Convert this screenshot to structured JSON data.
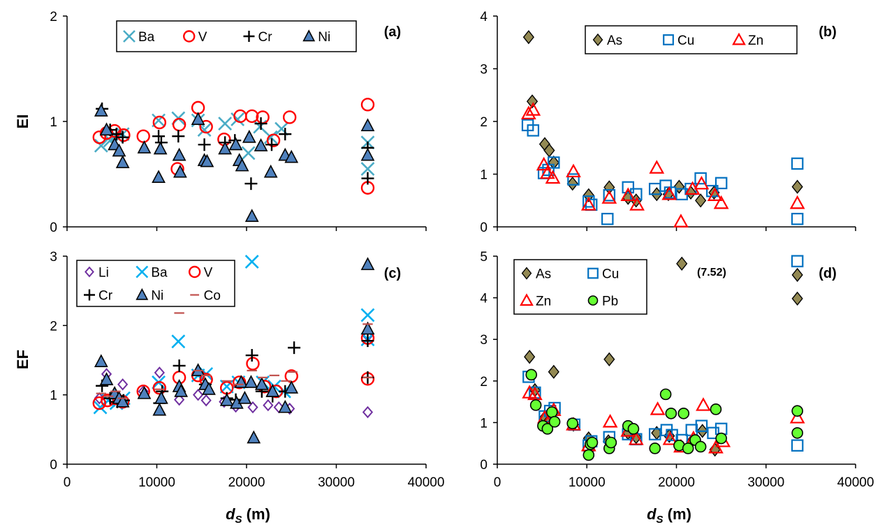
{
  "chart_data": [
    {
      "panel_label": "(a)",
      "type": "scatter",
      "ylabel": "EI",
      "xlabel": "",
      "xlim": [
        0,
        40000
      ],
      "ylim": [
        0,
        2
      ],
      "yticks": [
        "0",
        "1",
        "2"
      ],
      "xticks": [],
      "legend": {
        "position": "top",
        "columns": 4
      },
      "series": [
        {
          "name": "Ba",
          "marker": "x",
          "color": "#4bacc6",
          "x": [
            3800,
            4800,
            5500,
            6200,
            10200,
            12400,
            14600,
            15300,
            17600,
            19000,
            20200,
            21500,
            22700,
            23900,
            33500,
            33500
          ],
          "y": [
            0.77,
            0.82,
            0.86,
            0.88,
            1.01,
            1.03,
            1.01,
            0.92,
            0.98,
            1.02,
            0.7,
            0.95,
            0.85,
            0.93,
            0.8,
            0.55
          ]
        },
        {
          "name": "V",
          "marker": "circle",
          "color": "#ff0000",
          "x": [
            3600,
            4400,
            5300,
            6300,
            8500,
            10300,
            12500,
            12300,
            14600,
            15500,
            17500,
            19300,
            20600,
            21800,
            23000,
            24800,
            33500,
            33500
          ],
          "y": [
            0.85,
            0.89,
            0.91,
            0.87,
            0.86,
            0.99,
            0.97,
            0.55,
            1.13,
            0.95,
            0.83,
            1.05,
            1.05,
            1.04,
            0.82,
            1.04,
            1.16,
            0.37
          ]
        },
        {
          "name": "Cr",
          "marker": "plus",
          "color": "#000000",
          "x": [
            3900,
            4800,
            5500,
            6200,
            10200,
            10500,
            12400,
            15300,
            17600,
            18700,
            20500,
            21600,
            22800,
            24300,
            33500,
            33500
          ],
          "y": [
            1.12,
            0.92,
            0.88,
            0.85,
            0.86,
            0.8,
            0.86,
            0.78,
            0.8,
            0.82,
            0.41,
            0.98,
            0.78,
            0.88,
            0.75,
            0.46
          ]
        },
        {
          "name": "Ni",
          "marker": "triangle",
          "color": "#4f81bd",
          "x": [
            3800,
            4400,
            5300,
            5800,
            6200,
            8600,
            10200,
            10400,
            12500,
            12600,
            14600,
            15300,
            15600,
            17600,
            18800,
            19200,
            19500,
            20300,
            20600,
            21600,
            22700,
            24300,
            25000,
            33500,
            33500
          ],
          "y": [
            1.1,
            0.92,
            0.78,
            0.72,
            0.61,
            0.75,
            0.47,
            0.74,
            0.68,
            0.52,
            1.02,
            0.63,
            0.62,
            0.74,
            0.78,
            0.63,
            0.58,
            0.85,
            0.1,
            0.77,
            0.52,
            0.68,
            0.66,
            0.96,
            0.68
          ]
        }
      ]
    },
    {
      "panel_label": "(b)",
      "type": "scatter",
      "ylabel": "",
      "xlabel": "",
      "xlim": [
        0,
        40000
      ],
      "ylim": [
        0,
        4
      ],
      "yticks": [
        "0",
        "1",
        "2",
        "3",
        "4"
      ],
      "xticks": [],
      "legend": {
        "position": "top",
        "columns": 3
      },
      "series": [
        {
          "name": "As",
          "marker": "diamond",
          "color": "#938953",
          "x": [
            3500,
            3900,
            5300,
            5800,
            6300,
            8400,
            10200,
            12500,
            14600,
            15500,
            17800,
            19100,
            20300,
            21600,
            22700,
            24200,
            33500
          ],
          "y": [
            3.6,
            2.38,
            1.57,
            1.45,
            1.22,
            0.82,
            0.6,
            0.75,
            0.55,
            0.5,
            0.62,
            0.62,
            0.76,
            0.65,
            0.5,
            0.65,
            0.76
          ]
        },
        {
          "name": "Cu",
          "marker": "square",
          "color": "#0070c0",
          "x": [
            3400,
            4000,
            5200,
            5700,
            6300,
            8500,
            10200,
            10500,
            12300,
            12500,
            14600,
            15500,
            17600,
            18800,
            19300,
            20600,
            21600,
            22700,
            24000,
            25000,
            33500,
            33500
          ],
          "y": [
            1.93,
            1.83,
            1.02,
            1.08,
            1.22,
            0.9,
            0.48,
            0.42,
            0.15,
            0.6,
            0.75,
            0.62,
            0.72,
            0.78,
            0.65,
            0.62,
            0.72,
            0.92,
            0.68,
            0.83,
            1.2,
            0.15
          ]
        },
        {
          "name": "Zn",
          "marker": "triangle",
          "color": "#ff0000",
          "x": [
            3500,
            4000,
            5200,
            5600,
            6200,
            8500,
            10200,
            12500,
            14600,
            15600,
            17800,
            19200,
            20500,
            21800,
            22800,
            24300,
            25000,
            33500
          ],
          "y": [
            2.15,
            2.22,
            1.18,
            1.02,
            0.93,
            1.05,
            0.42,
            0.55,
            0.6,
            0.42,
            1.12,
            0.62,
            0.1,
            0.72,
            0.82,
            0.6,
            0.45,
            0.45
          ]
        }
      ]
    },
    {
      "panel_label": "(c)",
      "type": "scatter",
      "ylabel": "EF",
      "xlabel": "dS (m)",
      "xlim": [
        0,
        40000
      ],
      "ylim": [
        0,
        3
      ],
      "xticks": [
        "0",
        "10000",
        "20000",
        "30000",
        "40000"
      ],
      "yticks": [
        "0",
        "1",
        "2",
        "3"
      ],
      "legend": {
        "position": "top-left",
        "columns": 3
      },
      "series": [
        {
          "name": "Li",
          "marker": "diamond-open",
          "color": "#7030a0",
          "x": [
            3600,
            4400,
            5300,
            6200,
            8500,
            10300,
            12500,
            14600,
            15500,
            17500,
            18800,
            20700,
            22400,
            23600,
            24800,
            33500,
            33500
          ],
          "y": [
            0.95,
            1.3,
            0.98,
            1.15,
            1.05,
            1.32,
            0.93,
            1.0,
            0.92,
            0.9,
            0.83,
            0.82,
            0.85,
            0.82,
            0.8,
            1.85,
            0.75
          ]
        },
        {
          "name": "Ba",
          "marker": "x",
          "color": "#00b0f0",
          "x": [
            3700,
            4600,
            5500,
            6300,
            10200,
            12400,
            14600,
            15500,
            17800,
            19100,
            20600,
            21800,
            23100,
            24200,
            33500,
            33500
          ],
          "y": [
            0.82,
            0.92,
            0.88,
            0.95,
            1.18,
            1.77,
            1.28,
            1.3,
            1.12,
            1.18,
            2.92,
            1.18,
            1.12,
            1.05,
            2.15,
            1.8
          ]
        },
        {
          "name": "V",
          "marker": "circle",
          "color": "#ff0000",
          "x": [
            3600,
            4500,
            5400,
            6200,
            8500,
            10300,
            12500,
            14600,
            15500,
            17800,
            19200,
            20700,
            22000,
            23300,
            25000,
            33500,
            33500
          ],
          "y": [
            0.88,
            0.92,
            0.95,
            0.9,
            1.05,
            1.1,
            1.25,
            1.28,
            1.22,
            1.1,
            1.18,
            1.45,
            1.12,
            1.05,
            1.27,
            1.82,
            1.23
          ]
        },
        {
          "name": "Cr",
          "marker": "plus",
          "color": "#000000",
          "x": [
            3900,
            4800,
            5600,
            6300,
            10300,
            10600,
            12500,
            15400,
            17800,
            18800,
            20600,
            21700,
            22900,
            24300,
            25300,
            33500,
            33500
          ],
          "y": [
            1.13,
            0.95,
            0.9,
            0.92,
            0.88,
            1.05,
            1.42,
            1.15,
            0.95,
            0.93,
            1.57,
            1.05,
            0.98,
            1.05,
            1.68,
            1.78,
            1.25
          ]
        },
        {
          "name": "Ni",
          "marker": "triangle",
          "color": "#4f81bd",
          "x": [
            3800,
            4400,
            5300,
            5800,
            6200,
            8600,
            10300,
            10500,
            12500,
            12700,
            14600,
            15400,
            15800,
            17800,
            18900,
            19400,
            19800,
            20500,
            20800,
            21700,
            22900,
            24300,
            25000,
            33500,
            33500
          ],
          "y": [
            1.48,
            1.22,
            1.02,
            0.95,
            0.9,
            1.02,
            0.78,
            0.95,
            1.12,
            1.05,
            1.35,
            1.15,
            1.08,
            0.92,
            0.88,
            1.18,
            0.95,
            1.18,
            0.38,
            1.15,
            1.05,
            0.82,
            1.1,
            2.88,
            1.95
          ]
        },
        {
          "name": "Co",
          "marker": "dash",
          "color": "#c0504d",
          "x": [
            3800,
            4600,
            5400,
            6200,
            10300,
            12500,
            14600,
            15500,
            17800,
            19100,
            20600,
            21800,
            23100,
            24400,
            25100,
            33500,
            33500
          ],
          "y": [
            1.02,
            0.98,
            1.05,
            0.95,
            1.08,
            2.18,
            1.35,
            1.28,
            1.2,
            1.15,
            1.35,
            1.25,
            1.28,
            1.2,
            1.33,
            2.02,
            1.25
          ]
        }
      ]
    },
    {
      "panel_label": "(d)",
      "type": "scatter",
      "ylabel": "",
      "xlabel": "dS (m)",
      "xlim": [
        0,
        40000
      ],
      "ylim": [
        0,
        5
      ],
      "xticks": [
        "0",
        "10000",
        "20000",
        "30000",
        "40000"
      ],
      "yticks": [
        "0",
        "1",
        "2",
        "3",
        "4",
        "5"
      ],
      "legend": {
        "position": "top-left",
        "columns": 2
      },
      "annotation": "(7.52)",
      "series": [
        {
          "name": "As",
          "marker": "diamond",
          "color": "#938953",
          "x": [
            3600,
            4200,
            5300,
            5800,
            6300,
            8500,
            10200,
            12500,
            12400,
            14600,
            15500,
            17800,
            19200,
            20600,
            21700,
            22900,
            24300,
            33500,
            33500
          ],
          "y": [
            2.58,
            1.78,
            1.12,
            1.05,
            2.22,
            0.95,
            0.62,
            2.52,
            0.55,
            0.75,
            0.65,
            0.75,
            0.68,
            4.82,
            0.55,
            0.8,
            0.35,
            4.55,
            3.98
          ]
        },
        {
          "name": "Cu",
          "marker": "square",
          "color": "#0070c0",
          "x": [
            3500,
            4200,
            5300,
            5900,
            6400,
            8600,
            10200,
            10500,
            12500,
            14600,
            15500,
            17600,
            18900,
            19500,
            20600,
            21700,
            22800,
            24100,
            25000,
            33500,
            33500
          ],
          "y": [
            2.1,
            1.72,
            1.15,
            1.28,
            1.35,
            0.95,
            0.45,
            0.55,
            0.65,
            0.72,
            0.6,
            0.72,
            0.82,
            0.7,
            0.58,
            0.82,
            0.92,
            0.75,
            0.85,
            4.88,
            0.45
          ]
        },
        {
          "name": "Zn",
          "marker": "triangle",
          "color": "#ff0000",
          "x": [
            3600,
            4200,
            5300,
            5800,
            6300,
            8500,
            10200,
            12600,
            14600,
            15500,
            17900,
            19300,
            20500,
            21900,
            23000,
            24400,
            25200,
            33500
          ],
          "y": [
            1.72,
            1.68,
            1.12,
            1.05,
            1.3,
            0.95,
            0.45,
            1.02,
            0.8,
            0.6,
            1.32,
            0.6,
            0.42,
            0.62,
            1.42,
            0.4,
            0.55,
            1.12
          ]
        },
        {
          "name": "Pb",
          "marker": "circle-fill",
          "color": "#66ff33",
          "x": [
            3800,
            4300,
            5100,
            5600,
            6100,
            6400,
            8400,
            10200,
            10400,
            10600,
            12500,
            12700,
            14600,
            15200,
            17600,
            18800,
            19400,
            20300,
            20800,
            21300,
            22100,
            22700,
            24400,
            25000,
            33500,
            33500
          ],
          "y": [
            2.15,
            1.42,
            0.92,
            0.85,
            1.25,
            1.02,
            0.98,
            0.22,
            0.48,
            0.52,
            0.38,
            0.52,
            0.92,
            0.85,
            0.38,
            1.68,
            1.22,
            0.45,
            1.22,
            0.38,
            0.58,
            0.42,
            1.32,
            0.62,
            1.28,
            0.75
          ]
        }
      ]
    }
  ]
}
